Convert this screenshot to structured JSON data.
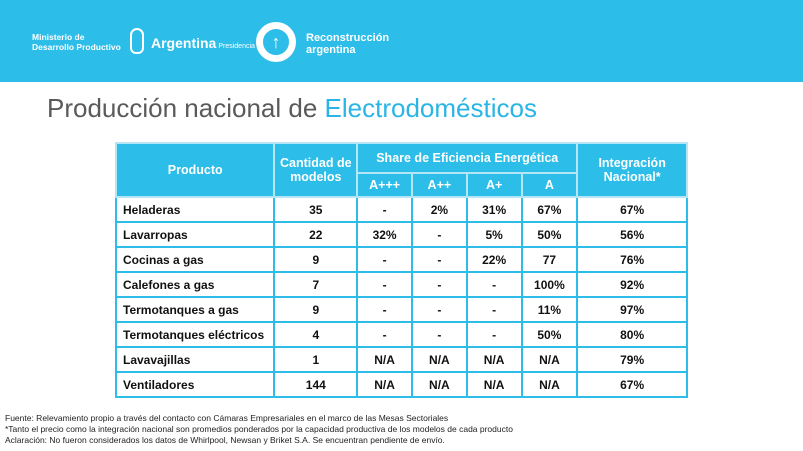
{
  "header": {
    "ministry": "Ministerio de",
    "ministry2": "Desarrollo Productivo",
    "argentina": "Argentina",
    "presidencia": "Presidencia",
    "reconstruccion": "Reconstrucción",
    "reconstruccion2": "argentina",
    "arrow": "↑"
  },
  "title": {
    "part1": "Producción nacional de ",
    "part2": "Electrodomésticos"
  },
  "table": {
    "headers": {
      "producto": "Producto",
      "cantidad": "Cantidad de modelos",
      "share": "Share de Eficiencia Energética",
      "integracion": "Integración Nacional*",
      "classes": [
        "A+++",
        "A++",
        "A+",
        "A"
      ]
    },
    "rows": [
      [
        "Heladeras",
        "35",
        "-",
        "2%",
        "31%",
        "67%",
        "67%"
      ],
      [
        "Lavarropas",
        "22",
        "32%",
        "-",
        "5%",
        "50%",
        "56%"
      ],
      [
        "Cocinas a gas",
        "9",
        "-",
        "-",
        "22%",
        "77",
        "76%"
      ],
      [
        "Calefones a gas",
        "7",
        "-",
        "-",
        "-",
        "100%",
        "92%"
      ],
      [
        "Termotanques a gas",
        "9",
        "-",
        "-",
        "-",
        "11%",
        "97%"
      ],
      [
        "Termotanques eléctricos",
        "4",
        "-",
        "-",
        "-",
        "50%",
        "80%"
      ],
      [
        "Lavavajillas",
        "1",
        "N/A",
        "N/A",
        "N/A",
        "N/A",
        "79%"
      ],
      [
        "Ventiladores",
        "144",
        "N/A",
        "N/A",
        "N/A",
        "N/A",
        "67%"
      ]
    ]
  },
  "notes": [
    "Fuente: Relevamiento propio a través del contacto con Cámaras Empresariales en el marco de las Mesas Sectoriales",
    "*Tanto el precio como la integración nacional son promedios ponderados por la capacidad productiva de los modelos de cada producto",
    "Aclaración: No fueron considerados los datos de Whirlpool, Newsan y Briket S.A. Se encuentran pendiente de envío."
  ]
}
